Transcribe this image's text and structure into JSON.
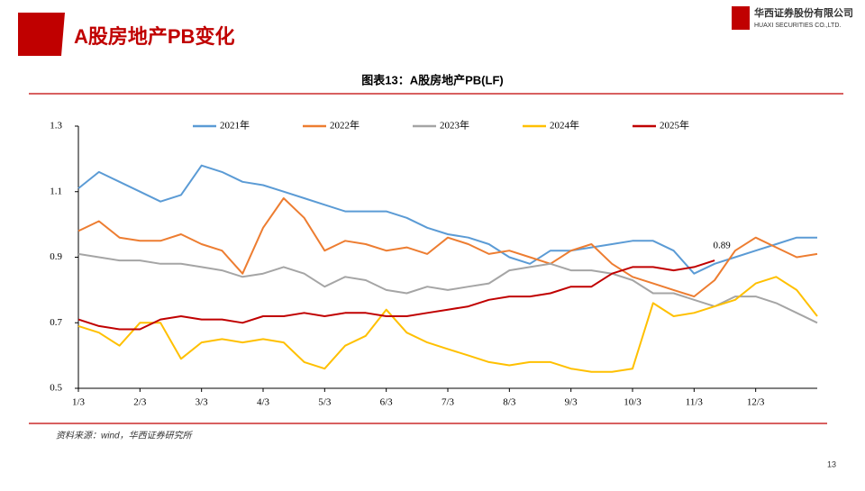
{
  "slide": {
    "title": "A股房地产PB变化",
    "company": "华西证券股份有限公司",
    "company_en": "HUAXI SECURITIES CO.,LTD.",
    "source": "资料来源：wind，华西证券研究所",
    "page": "13"
  },
  "chart_data": {
    "type": "line",
    "title": "图表13：A股房地产PB(LF)",
    "categories": [
      "1/3",
      null,
      null,
      "2/3",
      null,
      null,
      "3/3",
      null,
      null,
      "4/3",
      null,
      null,
      "5/3",
      null,
      null,
      "6/3",
      null,
      null,
      "7/3",
      null,
      null,
      "8/3",
      null,
      null,
      "9/3",
      null,
      null,
      "10/3",
      null,
      null,
      "11/3",
      null,
      null,
      "12/3",
      null,
      null,
      null
    ],
    "series": [
      {
        "name": "2021年",
        "color": "#5b9bd5",
        "values": [
          1.11,
          1.16,
          1.13,
          1.1,
          1.07,
          1.09,
          1.18,
          1.16,
          1.13,
          1.12,
          1.1,
          1.08,
          1.06,
          1.04,
          1.04,
          1.04,
          1.02,
          0.99,
          0.97,
          0.96,
          0.94,
          0.9,
          0.88,
          0.92,
          0.92,
          0.93,
          0.94,
          0.95,
          0.95,
          0.92,
          0.85,
          0.88,
          0.9,
          0.92,
          0.94,
          0.96,
          0.96
        ]
      },
      {
        "name": "2022年",
        "color": "#ed7d31",
        "values": [
          0.98,
          1.01,
          0.96,
          0.95,
          0.95,
          0.97,
          0.94,
          0.92,
          0.85,
          0.99,
          1.08,
          1.02,
          0.92,
          0.95,
          0.94,
          0.92,
          0.93,
          0.91,
          0.96,
          0.94,
          0.91,
          0.92,
          0.9,
          0.88,
          0.92,
          0.94,
          0.88,
          0.84,
          0.82,
          0.8,
          0.78,
          0.83,
          0.92,
          0.96,
          0.93,
          0.9,
          0.91
        ]
      },
      {
        "name": "2023年",
        "color": "#a5a5a5",
        "values": [
          0.91,
          0.9,
          0.89,
          0.89,
          0.88,
          0.88,
          0.87,
          0.86,
          0.84,
          0.85,
          0.87,
          0.85,
          0.81,
          0.84,
          0.83,
          0.8,
          0.79,
          0.81,
          0.8,
          0.81,
          0.82,
          0.86,
          0.87,
          0.88,
          0.86,
          0.86,
          0.85,
          0.83,
          0.79,
          0.79,
          0.77,
          0.75,
          0.78,
          0.78,
          0.76,
          0.73,
          0.7
        ]
      },
      {
        "name": "2024年",
        "color": "#ffc000",
        "values": [
          0.69,
          0.67,
          0.63,
          0.7,
          0.7,
          0.59,
          0.64,
          0.65,
          0.64,
          0.65,
          0.64,
          0.58,
          0.56,
          0.63,
          0.66,
          0.74,
          0.67,
          0.64,
          0.62,
          0.6,
          0.58,
          0.57,
          0.58,
          0.58,
          0.56,
          0.55,
          0.55,
          0.56,
          0.76,
          0.72,
          0.73,
          0.75,
          0.77,
          0.82,
          0.84,
          0.8,
          0.72
        ]
      },
      {
        "name": "2025年",
        "color": "#c00000",
        "values": [
          0.71,
          0.69,
          0.68,
          0.68,
          0.71,
          0.72,
          0.71,
          0.71,
          0.7,
          0.72,
          0.72,
          0.73,
          0.72,
          0.73,
          0.73,
          0.72,
          0.72,
          0.73,
          0.74,
          0.75,
          0.77,
          0.78,
          0.78,
          0.79,
          0.81,
          0.81,
          0.85,
          0.87,
          0.87,
          0.86,
          0.87,
          0.89,
          null,
          null,
          null,
          null,
          null
        ]
      }
    ],
    "annotations": [
      "0.89"
    ],
    "ylim": [
      0.5,
      1.3
    ],
    "yticks": [
      0.5,
      0.7,
      0.9,
      1.1,
      1.3
    ],
    "grid": false,
    "legend": "top"
  }
}
